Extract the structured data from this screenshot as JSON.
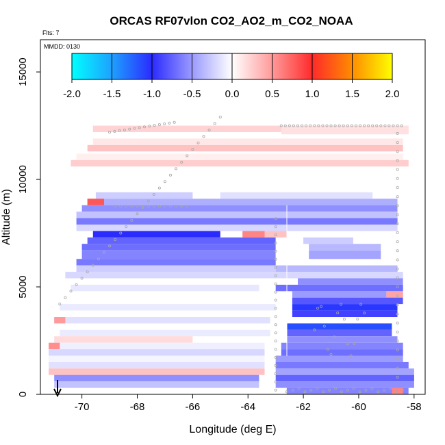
{
  "chart_data": {
    "type": "heatmap",
    "title": "ORCAS RF07vlon CO2_AO2_m_CO2_NOAA",
    "flts_label": "Flts: 7",
    "mmdd_label": "MMDD: 0130",
    "xlabel": "Longitude (deg E)",
    "ylabel": "Altitude (m)",
    "xlim": [
      -71.5,
      -57.6
    ],
    "ylim": [
      0,
      16500
    ],
    "x_ticks": [
      -70,
      -68,
      -66,
      -64,
      -62,
      -60,
      -58
    ],
    "x_tick_labels": [
      "-70",
      "-68",
      "-66",
      "-64",
      "-62",
      "-60",
      "-58"
    ],
    "y_ticks": [
      0,
      5000,
      10000,
      15000
    ],
    "y_tick_labels": [
      "0",
      "5000",
      "10000",
      "15000"
    ],
    "colorbar": {
      "range": [
        -2.0,
        2.0
      ],
      "ticks": [
        -2.0,
        -1.5,
        -1.0,
        -0.5,
        0.0,
        0.5,
        1.0,
        1.5,
        2.0
      ],
      "tick_labels": [
        "-2.0",
        "-1.5",
        "-1.0",
        "-0.5",
        "0.0",
        "0.5",
        "1.0",
        "1.5",
        "2.0"
      ],
      "colors": [
        "#00ffff",
        "#1e90ff",
        "#2b2bff",
        "#ffffff",
        "#ff2a2a",
        "#ffa500",
        "#ffff00"
      ]
    },
    "cells": [
      {
        "x": [
          -70.4,
          -58.2
        ],
        "y": [
          10600,
          10900
        ],
        "value": 0.25
      },
      {
        "x": [
          -70.2,
          -58.4
        ],
        "y": [
          10900,
          11200
        ],
        "value": 0.08
      },
      {
        "x": [
          -69.8,
          -58.4
        ],
        "y": [
          11300,
          11600
        ],
        "value": 0.3
      },
      {
        "x": [
          -69.6,
          -58.4
        ],
        "y": [
          11600,
          11900
        ],
        "value": 0.12
      },
      {
        "x": [
          -69.6,
          -58.2
        ],
        "y": [
          12200,
          12500
        ],
        "value": 0.22
      },
      {
        "x": [
          -62.8,
          -58.2
        ],
        "y": [
          12100,
          12500
        ],
        "value": 0.15
      },
      {
        "x": [
          -69.5,
          -66.0
        ],
        "y": [
          9100,
          9400
        ],
        "value": -0.25
      },
      {
        "x": [
          -65.0,
          -59.5
        ],
        "y": [
          9100,
          9400
        ],
        "value": -0.15
      },
      {
        "x": [
          -69.8,
          -58.6
        ],
        "y": [
          8800,
          9100
        ],
        "value": -0.4
      },
      {
        "x": [
          -69.8,
          -69.2
        ],
        "y": [
          8800,
          9100
        ],
        "value": 0.8
      },
      {
        "x": [
          -70.0,
          -58.6
        ],
        "y": [
          8500,
          8800
        ],
        "value": -0.55
      },
      {
        "x": [
          -70.2,
          -58.6
        ],
        "y": [
          8200,
          8500
        ],
        "value": -0.3
      },
      {
        "x": [
          -70.2,
          -58.6
        ],
        "y": [
          7900,
          8200
        ],
        "value": -0.65
      },
      {
        "x": [
          -70.2,
          -58.6
        ],
        "y": [
          7600,
          7900
        ],
        "value": -0.2
      },
      {
        "x": [
          -69.6,
          -65.0
        ],
        "y": [
          7300,
          7600
        ],
        "value": -1.0
      },
      {
        "x": [
          -64.2,
          -63.4
        ],
        "y": [
          7300,
          7600
        ],
        "value": 0.6
      },
      {
        "x": [
          -63.4,
          -62.6
        ],
        "y": [
          7300,
          7600
        ],
        "value": 0.3
      },
      {
        "x": [
          -69.8,
          -63.0
        ],
        "y": [
          7000,
          7300
        ],
        "value": -0.75
      },
      {
        "x": [
          -62.0,
          -60.2
        ],
        "y": [
          7000,
          7300
        ],
        "value": -0.25
      },
      {
        "x": [
          -70.0,
          -63.0
        ],
        "y": [
          6700,
          7000
        ],
        "value": -0.7
      },
      {
        "x": [
          -61.8,
          -59.2
        ],
        "y": [
          6700,
          7000
        ],
        "value": -0.35
      },
      {
        "x": [
          -70.0,
          -63.0
        ],
        "y": [
          6300,
          6700
        ],
        "value": -0.6
      },
      {
        "x": [
          -61.8,
          -59.2
        ],
        "y": [
          6300,
          6700
        ],
        "value": -0.45
      },
      {
        "x": [
          -70.2,
          -63.0
        ],
        "y": [
          6000,
          6300
        ],
        "value": -0.65
      },
      {
        "x": [
          -70.2,
          -63.0
        ],
        "y": [
          5700,
          6000
        ],
        "value": -0.25
      },
      {
        "x": [
          -63.0,
          -58.6
        ],
        "y": [
          5700,
          6000
        ],
        "value": -0.35
      },
      {
        "x": [
          -70.6,
          -58.4
        ],
        "y": [
          5400,
          5700
        ],
        "value": -0.2
      },
      {
        "x": [
          -62.2,
          -58.4
        ],
        "y": [
          5100,
          5400
        ],
        "value": -0.55
      },
      {
        "x": [
          -70.4,
          -63.6
        ],
        "y": [
          4800,
          5100
        ],
        "value": -0.12
      },
      {
        "x": [
          -63.0,
          -58.4
        ],
        "y": [
          4800,
          5100
        ],
        "value": -0.7
      },
      {
        "x": [
          -62.4,
          -59.0
        ],
        "y": [
          4500,
          4800
        ],
        "value": -0.5
      },
      {
        "x": [
          -59.0,
          -58.4
        ],
        "y": [
          4500,
          4800
        ],
        "value": 0.45
      },
      {
        "x": [
          -62.4,
          -58.4
        ],
        "y": [
          4200,
          4500
        ],
        "value": -0.8
      },
      {
        "x": [
          -70.8,
          -63.0
        ],
        "y": [
          3900,
          4200
        ],
        "value": -0.1
      },
      {
        "x": [
          -62.4,
          -58.6
        ],
        "y": [
          3900,
          4200
        ],
        "value": -1.05
      },
      {
        "x": [
          -62.4,
          -58.6
        ],
        "y": [
          3600,
          3900
        ],
        "value": -0.9
      },
      {
        "x": [
          -71.0,
          -63.2
        ],
        "y": [
          3300,
          3600
        ],
        "value": -0.15
      },
      {
        "x": [
          -71.0,
          -70.6
        ],
        "y": [
          3300,
          3600
        ],
        "value": 0.5
      },
      {
        "x": [
          -62.6,
          -58.8
        ],
        "y": [
          3000,
          3300
        ],
        "value": -1.15
      },
      {
        "x": [
          -70.8,
          -63.2
        ],
        "y": [
          2700,
          3000
        ],
        "value": -0.1
      },
      {
        "x": [
          -62.6,
          -58.8
        ],
        "y": [
          2700,
          3000
        ],
        "value": -0.75
      },
      {
        "x": [
          -71.0,
          -66.0
        ],
        "y": [
          2400,
          2700
        ],
        "value": 0.18
      },
      {
        "x": [
          -62.6,
          -58.6
        ],
        "y": [
          2400,
          2700
        ],
        "value": -0.55
      },
      {
        "x": [
          -71.2,
          -63.4
        ],
        "y": [
          2100,
          2400
        ],
        "value": -0.08
      },
      {
        "x": [
          -71.2,
          -70.8
        ],
        "y": [
          2100,
          2400
        ],
        "value": 0.55
      },
      {
        "x": [
          -62.8,
          -58.4
        ],
        "y": [
          2100,
          2400
        ],
        "value": -0.6
      },
      {
        "x": [
          -71.2,
          -63.4
        ],
        "y": [
          1800,
          2100
        ],
        "value": -0.2
      },
      {
        "x": [
          -62.8,
          -58.4
        ],
        "y": [
          1800,
          2100
        ],
        "value": -0.7
      },
      {
        "x": [
          -71.2,
          -63.4
        ],
        "y": [
          1500,
          1800
        ],
        "value": -0.05
      },
      {
        "x": [
          -63.0,
          -58.4
        ],
        "y": [
          1500,
          1800
        ],
        "value": -0.5
      },
      {
        "x": [
          -71.2,
          -63.4
        ],
        "y": [
          1200,
          1500
        ],
        "value": -0.15
      },
      {
        "x": [
          -63.0,
          -58.2
        ],
        "y": [
          1200,
          1500
        ],
        "value": -0.65
      },
      {
        "x": [
          -71.2,
          -63.4
        ],
        "y": [
          900,
          1200
        ],
        "value": 0.3
      },
      {
        "x": [
          -63.0,
          -58.0
        ],
        "y": [
          900,
          1200
        ],
        "value": -0.45
      },
      {
        "x": [
          -71.0,
          -63.6
        ],
        "y": [
          600,
          900
        ],
        "value": -0.55
      },
      {
        "x": [
          -63.0,
          -58.0
        ],
        "y": [
          600,
          900
        ],
        "value": -0.75
      },
      {
        "x": [
          -71.0,
          -63.6
        ],
        "y": [
          300,
          600
        ],
        "value": -0.3
      },
      {
        "x": [
          -63.0,
          -58.0
        ],
        "y": [
          300,
          600
        ],
        "value": -0.55
      },
      {
        "x": [
          -62.6,
          -58.2
        ],
        "y": [
          0,
          300
        ],
        "value": -0.6
      },
      {
        "x": [
          -58.8,
          -58.4
        ],
        "y": [
          0,
          300
        ],
        "value": 0.6
      }
    ]
  }
}
